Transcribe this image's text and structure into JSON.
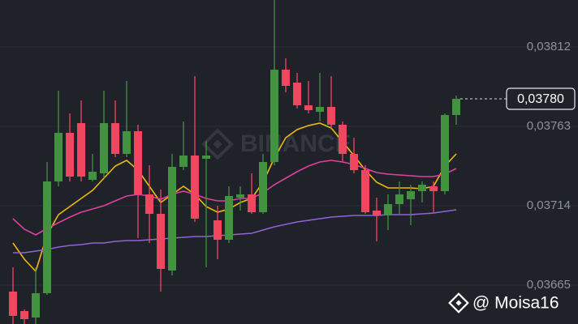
{
  "chart_data": {
    "type": "candlestick",
    "watermark": "BINANCE",
    "credit": "@ Moisa16",
    "up_color": "#43923f",
    "down_color": "#f0465f",
    "grid": true,
    "ylim": [
      0.03641,
      0.03841
    ],
    "yticks": [
      {
        "value": 0.03812,
        "label": "0,03812"
      },
      {
        "value": 0.03763,
        "label": "0,03763"
      },
      {
        "value": 0.03714,
        "label": "0,03714"
      },
      {
        "value": 0.03665,
        "label": "0,03665"
      }
    ],
    "current_price": {
      "value": 0.0378,
      "label": "0,03780"
    },
    "open": [
      0.03661,
      0.03649,
      0.03645,
      0.0366,
      0.03729,
      0.03759,
      0.03765,
      0.0373,
      0.03734,
      0.03765,
      0.03746,
      0.0376,
      0.03721,
      0.03709,
      0.03674,
      0.03738,
      0.03745,
      0.03743,
      0.03705,
      0.03693,
      0.03719,
      0.03721,
      0.0371,
      0.03741,
      0.03798,
      0.0379,
      0.03776,
      0.03772,
      0.03775,
      0.03764,
      0.03746,
      0.03736,
      0.03711,
      0.03708,
      0.03715,
      0.03718,
      0.03723,
      0.03726,
      0.03723,
      0.0377
    ],
    "high": [
      0.03676,
      0.0365,
      0.03676,
      0.03741,
      0.03785,
      0.03771,
      0.03779,
      0.03746,
      0.03785,
      0.03779,
      0.03791,
      0.03764,
      0.03739,
      0.03724,
      0.03746,
      0.03766,
      0.03794,
      0.03754,
      0.03714,
      0.03726,
      0.03726,
      0.03734,
      0.03746,
      0.03841,
      0.03805,
      0.03796,
      0.03791,
      0.03796,
      0.03794,
      0.03766,
      0.03756,
      0.03739,
      0.03719,
      0.03721,
      0.03729,
      0.03727,
      0.03729,
      0.03729,
      0.03771,
      0.03782
    ],
    "low": [
      0.03641,
      0.03641,
      0.03641,
      0.03659,
      0.03726,
      0.03729,
      0.03729,
      0.03729,
      0.03731,
      0.03744,
      0.03744,
      0.03694,
      0.03691,
      0.03661,
      0.03671,
      0.03736,
      0.03704,
      0.03676,
      0.03681,
      0.03691,
      0.03711,
      0.03709,
      0.03709,
      0.03739,
      0.03784,
      0.03774,
      0.03771,
      0.03766,
      0.03761,
      0.03741,
      0.03734,
      0.03709,
      0.03692,
      0.03699,
      0.03709,
      0.03702,
      0.03716,
      0.0371,
      0.03721,
      0.03764
    ],
    "close": [
      0.03646,
      0.03644,
      0.0366,
      0.03729,
      0.03759,
      0.03732,
      0.03732,
      0.03735,
      0.03765,
      0.03746,
      0.0376,
      0.03721,
      0.03709,
      0.03675,
      0.03738,
      0.03745,
      0.03706,
      0.03745,
      0.03693,
      0.0372,
      0.03721,
      0.0371,
      0.03741,
      0.03798,
      0.03788,
      0.03776,
      0.03773,
      0.03775,
      0.03764,
      0.03746,
      0.03736,
      0.0371,
      0.03708,
      0.03715,
      0.03721,
      0.03723,
      0.03727,
      0.03723,
      0.0377,
      0.0378
    ],
    "lines": [
      {
        "color": "#f0b90b",
        "values": [
          0.03691,
          0.03681,
          0.036735,
          0.03696,
          0.037085,
          0.037135,
          0.037185,
          0.037235,
          0.03731,
          0.037385,
          0.03742,
          0.03736,
          0.03726,
          0.03716,
          0.03721,
          0.03726,
          0.03721,
          0.037135,
          0.0371,
          0.03712,
          0.03716,
          0.037185,
          0.037285,
          0.037435,
          0.03756,
          0.03761,
          0.037635,
          0.03765,
          0.03762,
          0.037535,
          0.03745,
          0.03736,
          0.037285,
          0.03725,
          0.03725,
          0.03725,
          0.037245,
          0.03726,
          0.037385,
          0.03746
        ]
      },
      {
        "color": "#e0409e",
        "values": [
          0.03706,
          0.036995,
          0.03696,
          0.037,
          0.037035,
          0.03707,
          0.0371,
          0.03712,
          0.03714,
          0.03717,
          0.0372,
          0.03721,
          0.0372,
          0.03718,
          0.03721,
          0.03723,
          0.03721,
          0.037185,
          0.03717,
          0.03717,
          0.037185,
          0.037185,
          0.03722,
          0.03727,
          0.03731,
          0.03735,
          0.037385,
          0.03741,
          0.03742,
          0.03741,
          0.037395,
          0.03737,
          0.037345,
          0.037335,
          0.03733,
          0.037325,
          0.03732,
          0.03732,
          0.037335,
          0.03737
        ]
      },
      {
        "color": "#9163d6",
        "values": [
          0.03685,
          0.03685,
          0.03686,
          0.03687,
          0.036885,
          0.036895,
          0.0369,
          0.03691,
          0.03691,
          0.03692,
          0.036925,
          0.036925,
          0.03693,
          0.036935,
          0.03694,
          0.036945,
          0.03695,
          0.03695,
          0.036955,
          0.03696,
          0.036965,
          0.03697,
          0.03699,
          0.03701,
          0.037025,
          0.03704,
          0.03705,
          0.03706,
          0.03707,
          0.037075,
          0.03708,
          0.03708,
          0.03708,
          0.037085,
          0.037085,
          0.037085,
          0.03709,
          0.037095,
          0.037105,
          0.037115
        ]
      }
    ]
  }
}
